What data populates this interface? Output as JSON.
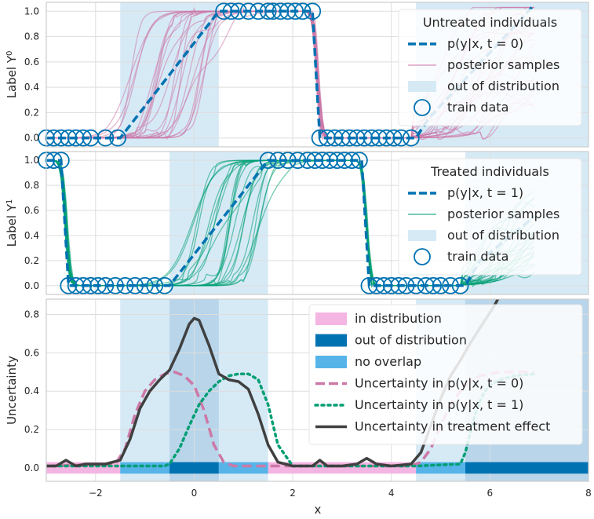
{
  "chart_data": [
    {
      "type": "line",
      "panel": "top",
      "ylabel": "Label Y",
      "ylabel_sup": "0",
      "xlim": [
        -3,
        8
      ],
      "ylim": [
        -0.07,
        1.07
      ],
      "yticks": [
        "0.0",
        "0.2",
        "0.4",
        "0.6",
        "0.8",
        "1.0"
      ],
      "grid": true,
      "legend": {
        "title": "Untreated individuals",
        "placement": "top-right",
        "entries": [
          "p(y|x, t = 0)",
          "posterior samples",
          "out of distribution",
          "train data"
        ]
      },
      "shaded_regions": [
        [
          -1.5,
          0.5
        ],
        [
          4.5,
          8
        ]
      ],
      "true_function": {
        "x": [
          -3,
          -1.5,
          0.5,
          2.4,
          2.55,
          4.5,
          4.75,
          6.9
        ],
        "y": [
          0,
          0,
          1,
          1,
          0,
          0,
          0.15,
          1.05
        ]
      },
      "train_data": {
        "x": [
          -3.0,
          -2.85,
          -2.7,
          -2.55,
          -2.4,
          -2.25,
          -2.1,
          -1.8,
          -1.55,
          0.6,
          0.75,
          0.9,
          1.1,
          1.3,
          1.5,
          1.6,
          1.75,
          1.9,
          2.05,
          2.2,
          2.4,
          2.55,
          2.7,
          2.85,
          3.0,
          3.15,
          3.3,
          3.45,
          3.6,
          3.75,
          3.9,
          4.05,
          4.2,
          4.4
        ],
        "y": [
          0,
          0,
          0,
          0,
          0,
          0,
          0,
          0,
          0,
          1,
          1,
          1,
          1,
          1,
          1,
          1,
          1,
          1,
          1,
          1,
          1,
          0,
          0,
          0,
          0,
          0,
          0,
          0,
          0,
          0,
          0,
          0,
          0,
          0
        ]
      },
      "colors": {
        "mean": "#0072b2",
        "samples": "#cc79a7",
        "ood": "#d6eaf6"
      }
    },
    {
      "type": "line",
      "panel": "middle",
      "ylabel": "Label Y",
      "ylabel_sup": "1",
      "xlim": [
        -3,
        8
      ],
      "ylim": [
        -0.07,
        1.07
      ],
      "yticks": [
        "0.0",
        "0.2",
        "0.4",
        "0.6",
        "0.8",
        "1.0"
      ],
      "grid": true,
      "legend": {
        "title": "Treated individuals",
        "placement": "top-right",
        "entries": [
          "p(y|x, t = 1)",
          "posterior samples",
          "out of distribution",
          "train data"
        ]
      },
      "shaded_regions": [
        [
          -0.5,
          1.5
        ],
        [
          5.5,
          8
        ]
      ],
      "true_function": {
        "x": [
          -3,
          -2.7,
          -2.55,
          -0.5,
          1.5,
          3.4,
          3.55,
          5.5,
          5.8,
          6.9
        ],
        "y": [
          1,
          1,
          0,
          0,
          1,
          1,
          0,
          0,
          0.2,
          0.55
        ]
      },
      "train_data": {
        "x": [
          -3.0,
          -2.85,
          -2.7,
          -2.55,
          -2.4,
          -2.25,
          -2.1,
          -1.95,
          -1.8,
          -1.6,
          -1.4,
          -1.2,
          -1.0,
          -0.8,
          -0.6,
          1.5,
          1.7,
          1.9,
          2.1,
          2.3,
          2.45,
          2.6,
          2.75,
          2.9,
          3.05,
          3.2,
          3.35,
          3.55,
          3.7,
          3.85,
          4.0,
          4.15,
          4.3,
          4.5,
          4.7,
          4.85,
          5.0,
          5.2,
          5.4
        ],
        "y": [
          1,
          1,
          1,
          0,
          0,
          0,
          0,
          0,
          0,
          0,
          0,
          0,
          0,
          0,
          0,
          1,
          1,
          1,
          1,
          1,
          1,
          1,
          1,
          1,
          1,
          1,
          1,
          0,
          0,
          0,
          0,
          0,
          0,
          0,
          0,
          0,
          0,
          0,
          0
        ]
      },
      "colors": {
        "mean": "#0072b2",
        "samples": "#009e73",
        "ood": "#d6eaf6"
      }
    },
    {
      "type": "line",
      "panel": "bottom",
      "ylabel": "Uncertainty",
      "xlabel": "x",
      "xlim": [
        -3,
        8
      ],
      "ylim": [
        -0.07,
        0.88
      ],
      "xticks": [
        "−2",
        "0",
        "2",
        "4",
        "6",
        "8"
      ],
      "yticks": [
        "0.0",
        "0.2",
        "0.4",
        "0.6",
        "0.8"
      ],
      "grid": true,
      "legend": {
        "placement": "top-right",
        "entries": [
          "in distribution",
          "out of distribution",
          "no overlap",
          "Uncertainty in p(y|x, t = 0)",
          "Uncertainty in p(y|x, t = 1)",
          "Uncertainty in treatment effect"
        ]
      },
      "shaded_regions": [
        [
          -1.5,
          1.5
        ],
        [
          4.5,
          8
        ]
      ],
      "no_overlap_regions": [
        [
          -0.5,
          0.5
        ],
        [
          5.5,
          8
        ]
      ],
      "bands": {
        "in_distribution": [
          [
            -3,
            -1.5
          ],
          [
            1.5,
            4.5
          ]
        ],
        "out_of_distribution": [
          [
            -0.5,
            0.5
          ],
          [
            5.5,
            8
          ]
        ],
        "no_overlap": [
          [
            -1.5,
            -0.5
          ],
          [
            0.5,
            1.5
          ],
          [
            4.5,
            5.5
          ]
        ]
      },
      "series": [
        {
          "name": "Uncertainty in p(y|x, t = 0)",
          "style": "dashed",
          "color": "#cc79a7",
          "x": [
            -3,
            -1.6,
            -1.4,
            -1.2,
            -1.0,
            -0.8,
            -0.6,
            -0.4,
            -0.2,
            0.0,
            0.2,
            0.4,
            0.6,
            0.8,
            1.0,
            1.5,
            2.5,
            4.4,
            4.6,
            4.8,
            5.0,
            5.2,
            5.4,
            5.6,
            5.8,
            6.0,
            6.2,
            6.5,
            6.9
          ],
          "y": [
            0.01,
            0.02,
            0.1,
            0.28,
            0.4,
            0.46,
            0.49,
            0.5,
            0.48,
            0.43,
            0.3,
            0.12,
            0.03,
            0.01,
            0.01,
            0.01,
            0.01,
            0.01,
            0.03,
            0.1,
            0.22,
            0.33,
            0.4,
            0.45,
            0.48,
            0.49,
            0.5,
            0.5,
            0.5
          ]
        },
        {
          "name": "Uncertainty in p(y|x, t = 1)",
          "style": "dotted",
          "color": "#009e73",
          "x": [
            -3,
            -1.0,
            -0.6,
            -0.5,
            -0.3,
            -0.1,
            0.1,
            0.3,
            0.5,
            0.7,
            0.9,
            1.1,
            1.3,
            1.5,
            1.7,
            2.0,
            4.5,
            5.4,
            5.5,
            5.6,
            5.7,
            5.8,
            5.9,
            6.0,
            6.2,
            6.5,
            6.9
          ],
          "y": [
            0.01,
            0.01,
            0.01,
            0.02,
            0.1,
            0.22,
            0.33,
            0.4,
            0.45,
            0.48,
            0.49,
            0.49,
            0.46,
            0.33,
            0.12,
            0.01,
            0.01,
            0.02,
            0.08,
            0.18,
            0.28,
            0.35,
            0.4,
            0.43,
            0.46,
            0.48,
            0.49
          ]
        },
        {
          "name": "Uncertainty in treatment effect",
          "style": "solid",
          "color": "#404040",
          "x": [
            -3,
            -2.8,
            -2.6,
            -2.4,
            -2.2,
            -1.8,
            -1.5,
            -1.3,
            -1.1,
            -0.9,
            -0.7,
            -0.5,
            -0.3,
            -0.1,
            0.0,
            0.1,
            0.3,
            0.5,
            0.7,
            0.9,
            1.1,
            1.3,
            1.5,
            1.7,
            2.0,
            2.4,
            2.55,
            2.7,
            3.0,
            3.3,
            3.5,
            3.7,
            4.0,
            4.4,
            4.6,
            4.8,
            5.0,
            5.2,
            5.4,
            5.6,
            5.8,
            6.0,
            6.1,
            6.2
          ],
          "y": [
            0.01,
            0.01,
            0.04,
            0.01,
            0.02,
            0.02,
            0.04,
            0.15,
            0.31,
            0.4,
            0.46,
            0.51,
            0.62,
            0.75,
            0.78,
            0.77,
            0.64,
            0.49,
            0.46,
            0.45,
            0.41,
            0.28,
            0.12,
            0.03,
            0.01,
            0.01,
            0.04,
            0.01,
            0.01,
            0.02,
            0.05,
            0.02,
            0.01,
            0.02,
            0.08,
            0.22,
            0.36,
            0.48,
            0.56,
            0.65,
            0.73,
            0.81,
            0.85,
            0.9
          ]
        }
      ]
    }
  ],
  "colors": {
    "in_distribution": "#f5b5e2",
    "out_of_distribution": "#0072b2",
    "no_overlap": "#56b4e9",
    "ood_shade": "#d6eaf6",
    "no_overlap_shade": "#b8d5ea",
    "frame": "#cccccc",
    "grid": "#dddddd",
    "legend_bg": "#ffffff"
  }
}
